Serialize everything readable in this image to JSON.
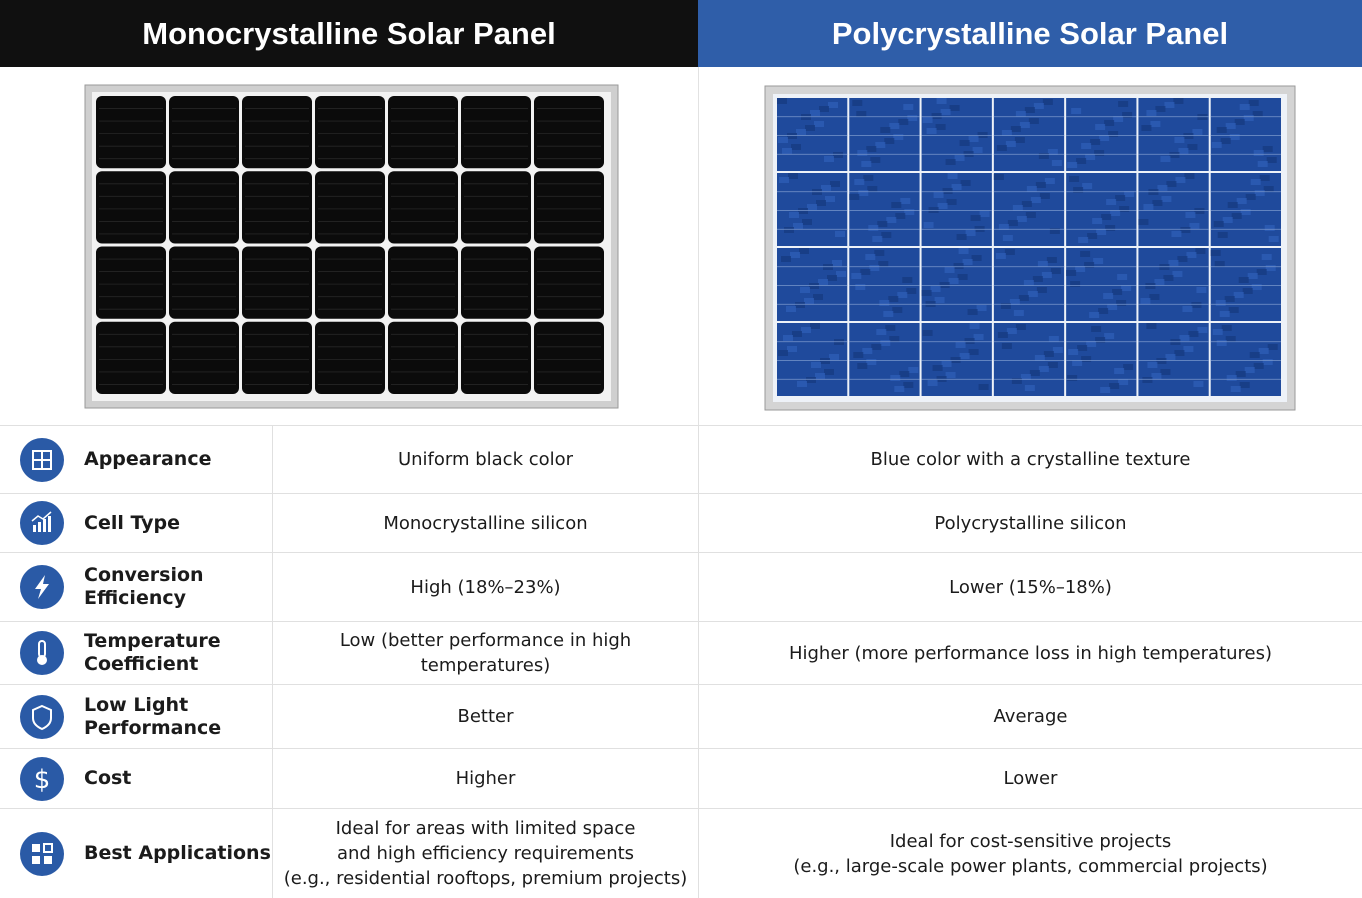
{
  "header": {
    "left": "Monocrystalline Solar Panel",
    "right": "Polycrystalline Solar Panel"
  },
  "rows": [
    {
      "label": [
        "Appearance"
      ],
      "mono": [
        "Uniform black color"
      ],
      "poly": [
        "Blue color with a crystalline texture"
      ]
    },
    {
      "label": [
        "Cell Type"
      ],
      "mono": [
        "Monocrystalline silicon"
      ],
      "poly": [
        "Polycrystalline silicon"
      ]
    },
    {
      "label": [
        "Conversion",
        "Efficiency"
      ],
      "mono": [
        "High (18%–23%)"
      ],
      "poly": [
        "Lower (15%–18%)"
      ]
    },
    {
      "label": [
        "Temperature",
        "Coefficient"
      ],
      "mono": [
        "Low (better performance in high temperatures)"
      ],
      "poly": [
        "Higher (more performance loss in high temperatures)"
      ]
    },
    {
      "label": [
        "Low Light",
        "Performance"
      ],
      "mono": [
        "Better"
      ],
      "poly": [
        "Average"
      ]
    },
    {
      "label": [
        "Cost"
      ],
      "mono": [
        "Higher"
      ],
      "poly": [
        "Lower"
      ]
    },
    {
      "label": [
        "Best Applications"
      ],
      "mono": [
        "Ideal for areas with limited space",
        "and high efficiency requirements",
        "(e.g., residential rooftops, premium projects)"
      ],
      "poly": [
        "Ideal for cost-sensitive projects",
        "(e.g., large-scale power plants, commercial projects)"
      ]
    }
  ]
}
